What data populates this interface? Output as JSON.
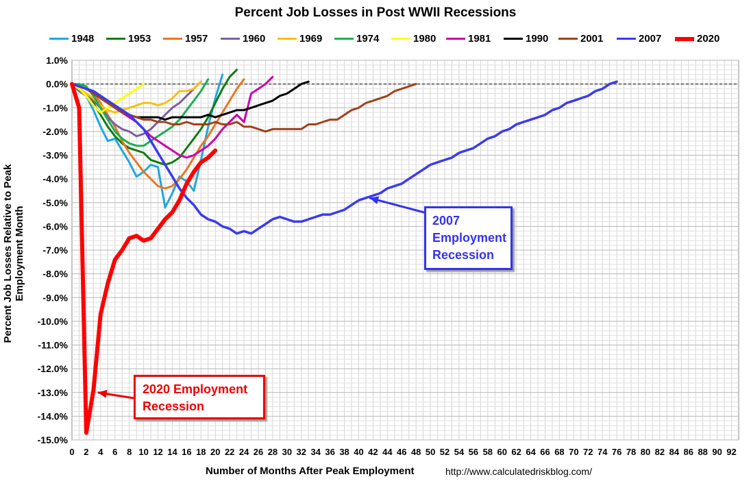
{
  "chart_data": {
    "type": "line",
    "title": "Percent Job Losses in Post WWII Recessions",
    "xlabel": "Number of Months After Peak Employment",
    "ylabel": "Percent Job Losses Relative to Peak Employment Month",
    "source": "http://www.calculatedriskblog.com/",
    "xlim": [
      0,
      93
    ],
    "ylim": [
      -15,
      1
    ],
    "x_ticks": [
      0,
      2,
      4,
      6,
      8,
      10,
      12,
      14,
      16,
      18,
      20,
      22,
      24,
      26,
      28,
      30,
      32,
      34,
      36,
      38,
      40,
      42,
      44,
      46,
      48,
      50,
      52,
      54,
      56,
      58,
      60,
      62,
      64,
      66,
      68,
      70,
      72,
      74,
      76,
      78,
      80,
      82,
      84,
      86,
      88,
      90,
      92
    ],
    "y_ticks": [
      1,
      0,
      -1,
      -2,
      -3,
      -4,
      -5,
      -6,
      -7,
      -8,
      -9,
      -10,
      -11,
      -12,
      -13,
      -14,
      -15
    ],
    "y_tick_labels": [
      "1.0%",
      "0.0%",
      "-1.0%",
      "-2.0%",
      "-3.0%",
      "-4.0%",
      "-5.0%",
      "-6.0%",
      "-7.0%",
      "-8.0%",
      "-9.0%",
      "-10.0%",
      "-11.0%",
      "-12.0%",
      "-13.0%",
      "-14.0%",
      "-15.0%"
    ],
    "grid": true,
    "reference_line": 0,
    "series": [
      {
        "name": "1948",
        "color": "#1fa7e0",
        "width": 3,
        "values": [
          0,
          -0.2,
          -0.5,
          -1.1,
          -1.8,
          -2.4,
          -2.3,
          -2.8,
          -3.3,
          -3.9,
          -3.7,
          -3.4,
          -3.5,
          -5.2,
          -4.6,
          -3.9,
          -4.1,
          -4.5,
          -3.2,
          -1.8,
          -0.6,
          0.4
        ]
      },
      {
        "name": "1953",
        "color": "#107c10",
        "width": 3,
        "values": [
          0,
          -0.2,
          -0.4,
          -0.8,
          -1.3,
          -1.8,
          -2.2,
          -2.5,
          -2.7,
          -2.8,
          -2.9,
          -3.2,
          -3.3,
          -3.4,
          -3.3,
          -3.1,
          -2.7,
          -2.3,
          -1.9,
          -1.4,
          -0.8,
          -0.2,
          0.3,
          0.6
        ]
      },
      {
        "name": "1957",
        "color": "#e87722",
        "width": 3,
        "values": [
          0,
          -0.1,
          -0.2,
          -0.4,
          -0.8,
          -1.3,
          -1.8,
          -2.4,
          -2.9,
          -3.3,
          -3.7,
          -4.0,
          -4.3,
          -4.4,
          -4.3,
          -4.0,
          -3.6,
          -3.1,
          -2.6,
          -2.2,
          -1.7,
          -1.2,
          -0.7,
          -0.2,
          0.2
        ]
      },
      {
        "name": "1960",
        "color": "#7a5fa0",
        "width": 3,
        "values": [
          0,
          -0.3,
          -0.5,
          -0.7,
          -1.0,
          -1.4,
          -1.7,
          -1.9,
          -2.0,
          -2.2,
          -2.1,
          -1.9,
          -1.6,
          -1.3,
          -1.0,
          -0.8,
          -0.5,
          -0.2,
          0.1
        ]
      },
      {
        "name": "1969",
        "color": "#f7c00d",
        "width": 3,
        "values": [
          0,
          -0.2,
          -0.4,
          -0.6,
          -0.9,
          -1.1,
          -1.2,
          -1.1,
          -1.0,
          -0.9,
          -0.8,
          -0.8,
          -0.9,
          -0.8,
          -0.6,
          -0.3,
          -0.3,
          -0.2,
          0.1
        ]
      },
      {
        "name": "1974",
        "color": "#1ab050",
        "width": 3,
        "values": [
          0,
          0.0,
          -0.1,
          -0.5,
          -1.0,
          -1.5,
          -2.0,
          -2.3,
          -2.5,
          -2.6,
          -2.6,
          -2.4,
          -2.2,
          -2.0,
          -1.8,
          -1.5,
          -1.1,
          -0.7,
          -0.3,
          0.2
        ]
      },
      {
        "name": "1980",
        "color": "#ffff00",
        "width": 3,
        "values": [
          0,
          -0.2,
          -0.5,
          -0.9,
          -1.2,
          -1.0,
          -0.8,
          -0.6,
          -0.4,
          -0.2,
          0.0
        ]
      },
      {
        "name": "1981",
        "color": "#cc00aa",
        "width": 3,
        "values": [
          0,
          -0.1,
          -0.2,
          -0.4,
          -0.6,
          -0.8,
          -1.0,
          -1.2,
          -1.4,
          -1.6,
          -1.9,
          -2.2,
          -2.4,
          -2.6,
          -2.8,
          -3.0,
          -3.1,
          -3.0,
          -2.8,
          -2.6,
          -2.3,
          -1.9,
          -1.6,
          -1.3,
          -1.6,
          -0.4,
          -0.2,
          0.0,
          0.3
        ]
      },
      {
        "name": "1990",
        "color": "#000000",
        "width": 3,
        "values": [
          0,
          -0.1,
          -0.2,
          -0.4,
          -0.6,
          -0.8,
          -1.0,
          -1.2,
          -1.3,
          -1.4,
          -1.4,
          -1.4,
          -1.4,
          -1.5,
          -1.4,
          -1.4,
          -1.4,
          -1.4,
          -1.4,
          -1.3,
          -1.4,
          -1.3,
          -1.2,
          -1.1,
          -1.1,
          -1.0,
          -0.9,
          -0.8,
          -0.7,
          -0.5,
          -0.4,
          -0.2,
          0.0,
          0.1
        ]
      },
      {
        "name": "2001",
        "color": "#a0401a",
        "width": 3,
        "values": [
          0,
          -0.1,
          -0.2,
          -0.4,
          -0.6,
          -0.8,
          -1.0,
          -1.2,
          -1.3,
          -1.4,
          -1.5,
          -1.5,
          -1.6,
          -1.6,
          -1.7,
          -1.7,
          -1.6,
          -1.7,
          -1.7,
          -1.7,
          -1.6,
          -1.7,
          -1.7,
          -1.6,
          -1.8,
          -1.8,
          -1.9,
          -2.0,
          -1.9,
          -1.9,
          -1.9,
          -1.9,
          -1.9,
          -1.7,
          -1.7,
          -1.6,
          -1.5,
          -1.5,
          -1.3,
          -1.1,
          -1.0,
          -0.8,
          -0.7,
          -0.6,
          -0.5,
          -0.3,
          -0.2,
          -0.1,
          0.0
        ]
      },
      {
        "name": "2007",
        "color": "#3a3af0",
        "width": 3.5,
        "values": [
          0,
          -0.1,
          -0.2,
          -0.3,
          -0.5,
          -0.7,
          -0.9,
          -1.1,
          -1.3,
          -1.6,
          -1.9,
          -2.4,
          -2.9,
          -3.4,
          -3.9,
          -4.4,
          -4.8,
          -5.1,
          -5.5,
          -5.7,
          -5.8,
          -6.0,
          -6.1,
          -6.3,
          -6.2,
          -6.3,
          -6.1,
          -5.9,
          -5.7,
          -5.6,
          -5.7,
          -5.8,
          -5.8,
          -5.7,
          -5.6,
          -5.5,
          -5.5,
          -5.4,
          -5.3,
          -5.1,
          -4.9,
          -4.8,
          -4.7,
          -4.6,
          -4.4,
          -4.3,
          -4.2,
          -4.0,
          -3.8,
          -3.6,
          -3.4,
          -3.3,
          -3.2,
          -3.1,
          -2.9,
          -2.8,
          -2.7,
          -2.5,
          -2.3,
          -2.2,
          -2.0,
          -1.9,
          -1.7,
          -1.6,
          -1.5,
          -1.4,
          -1.3,
          -1.1,
          -1.0,
          -0.8,
          -0.7,
          -0.6,
          -0.5,
          -0.3,
          -0.2,
          0.0,
          0.1
        ]
      },
      {
        "name": "2020",
        "color": "#ff0000",
        "width": 6,
        "values": [
          0,
          -1.0,
          -14.7,
          -12.9,
          -9.7,
          -8.4,
          -7.4,
          -7.0,
          -6.5,
          -6.4,
          -6.6,
          -6.5,
          -6.1,
          -5.7,
          -5.4,
          -4.9,
          -4.2,
          -3.7,
          -3.3,
          -3.1,
          -2.8
        ]
      }
    ],
    "annotations": [
      {
        "lines": [
          "2007",
          "Employment",
          "Recession"
        ],
        "color": "#3333ee",
        "arrow_to": [
          41.5,
          -4.8
        ]
      },
      {
        "lines": [
          "2020 Employment",
          "Recession"
        ],
        "color": "#ee0000",
        "arrow_to": [
          3.6,
          -13.0
        ]
      }
    ]
  }
}
